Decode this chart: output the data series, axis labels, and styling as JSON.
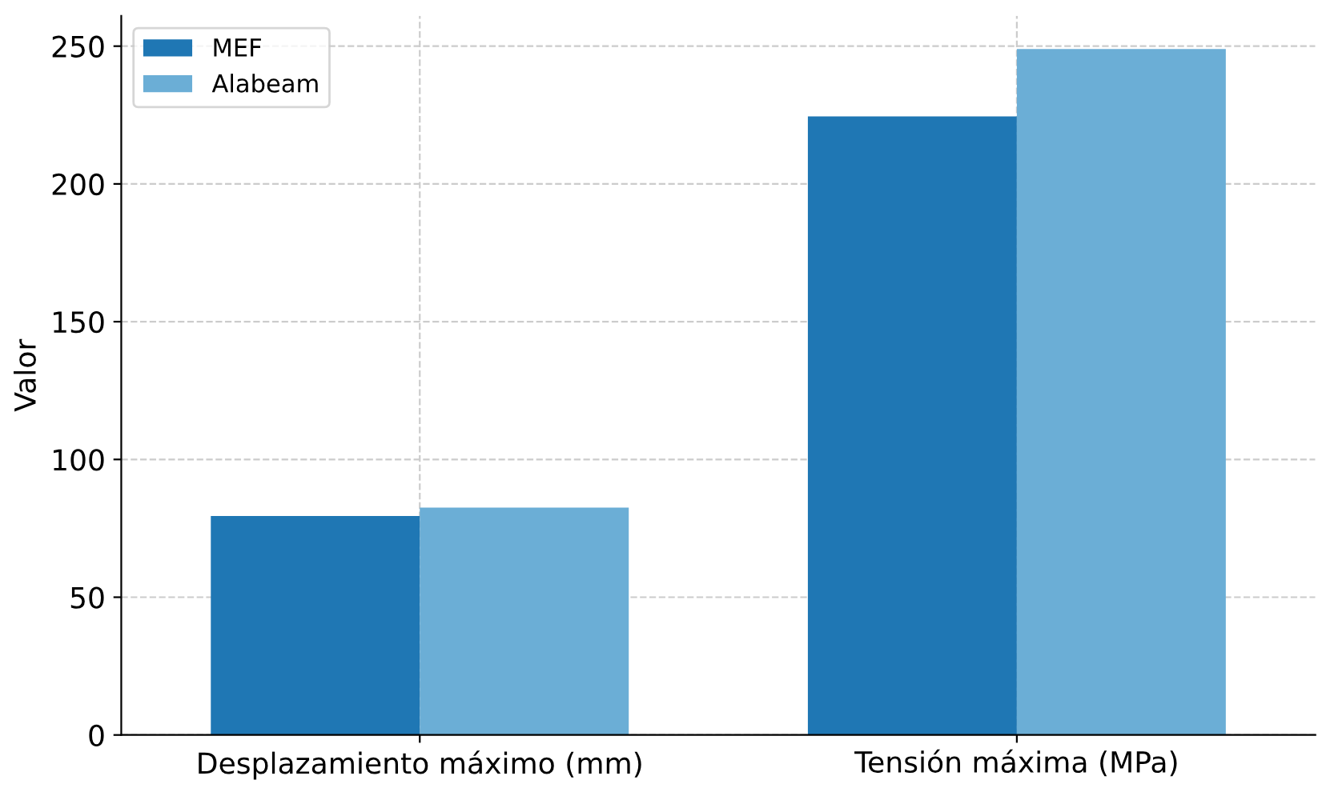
{
  "chart_data": {
    "type": "bar",
    "ylabel": "Valor",
    "categories": [
      "Desplazamiento máximo (mm)",
      "Tensión máxima (MPa)"
    ],
    "series": [
      {
        "name": "MEF",
        "color": "#1f77b4",
        "values": [
          79.5,
          224.5
        ]
      },
      {
        "name": "Alabeam",
        "color": "#6baed6",
        "values": [
          82.5,
          249
        ]
      }
    ],
    "ylim": [
      0,
      261
    ],
    "yticks": [
      0,
      50,
      100,
      150,
      200,
      250
    ],
    "grid": true,
    "legend": "top left"
  }
}
